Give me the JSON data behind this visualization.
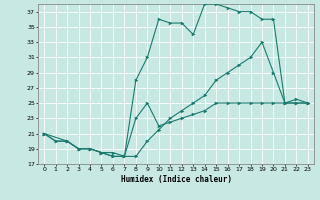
{
  "xlabel": "Humidex (Indice chaleur)",
  "bg_color": "#c8e8e4",
  "line_color": "#1a7a6e",
  "grid_color": "#ffffff",
  "ylim": [
    17,
    38
  ],
  "xlim": [
    -0.5,
    23.5
  ],
  "yticks": [
    17,
    19,
    21,
    23,
    25,
    27,
    29,
    31,
    33,
    35,
    37
  ],
  "xticks": [
    0,
    1,
    2,
    3,
    4,
    5,
    6,
    7,
    8,
    9,
    10,
    11,
    12,
    13,
    14,
    15,
    16,
    17,
    18,
    19,
    20,
    21,
    22,
    23
  ],
  "line_top_x": [
    0,
    1,
    2,
    3,
    4,
    5,
    6,
    7,
    8,
    9,
    10,
    11,
    12,
    13,
    14,
    15,
    16,
    17,
    18,
    19,
    20,
    21,
    22,
    23
  ],
  "line_top_y": [
    21,
    20,
    20,
    19,
    19,
    18.5,
    18,
    18,
    28,
    31,
    36,
    35.5,
    35.5,
    34,
    38,
    38,
    37.5,
    37,
    37,
    36,
    36,
    25,
    25.5,
    25
  ],
  "line_mid_x": [
    0,
    1,
    2,
    3,
    4,
    5,
    6,
    7,
    8,
    9,
    10,
    11,
    12,
    13,
    14,
    15,
    16,
    17,
    18,
    19,
    20,
    21,
    22,
    23
  ],
  "line_mid_y": [
    21,
    20,
    20,
    19,
    19,
    18.5,
    18,
    18,
    18,
    20,
    21.5,
    23,
    24,
    25,
    26,
    28,
    29,
    30,
    31,
    33,
    29,
    25,
    25,
    25
  ],
  "line_bot_x": [
    0,
    2,
    3,
    4,
    5,
    6,
    7,
    8,
    9,
    10,
    11,
    12,
    13,
    14,
    15,
    16,
    17,
    18,
    19,
    20,
    21,
    22,
    23
  ],
  "line_bot_y": [
    21,
    20,
    19,
    19,
    18.5,
    18.5,
    18,
    23,
    25,
    22,
    22.5,
    23,
    23.5,
    24,
    25,
    25,
    25,
    25,
    25,
    25,
    25,
    25,
    25
  ]
}
